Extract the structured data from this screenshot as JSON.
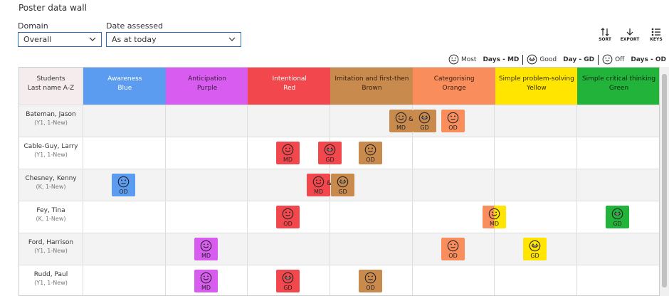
{
  "header": {
    "title": "Poster data wall"
  },
  "filters": [
    {
      "label": "Domain",
      "value": "Overall"
    },
    {
      "label": "Date assessed",
      "value": "As at today"
    }
  ],
  "toolbar": [
    "Sort",
    "Export",
    "Keys"
  ],
  "legend": [
    {
      "word": "Most",
      "text": "Days - MD"
    },
    {
      "word": "Good",
      "text": "Day - GD"
    },
    {
      "word": "Off",
      "text": "Days - OD"
    }
  ],
  "table": {
    "first_column": {
      "title": "Students",
      "subtitle": "Last name A-Z"
    },
    "columns": [
      {
        "name": "Awareness",
        "color_name": "Blue",
        "color": "#5b9cf0",
        "text": "#ffffff"
      },
      {
        "name": "Anticipation",
        "color_name": "Purple",
        "color": "#d95cf0",
        "text": "#3a1a40"
      },
      {
        "name": "Intentional",
        "color_name": "Red",
        "color": "#f2484d",
        "text": "#ffffff"
      },
      {
        "name": "Imitation and first-then",
        "color_name": "Brown",
        "color": "#c98a4e",
        "text": "#3a2410"
      },
      {
        "name": "Categorising",
        "color_name": "Orange",
        "color": "#f98d5c",
        "text": "#3a2010"
      },
      {
        "name": "Simple problem-solving",
        "color_name": "Yellow",
        "color": "#ffe500",
        "text": "#3a3300"
      },
      {
        "name": "Simple critical thinking",
        "color_name": "Green",
        "color": "#22b43a",
        "text": "#0d2a10"
      }
    ],
    "rows": [
      {
        "name": "Bateman, Jason",
        "sub": "(Y1, 1-New)",
        "items": [
          {
            "label": "MD",
            "color": "#c98a4e"
          },
          {
            "text": "&"
          },
          {
            "label": "GD",
            "color": "#c98a4e"
          },
          {
            "label": "OD",
            "color": "#f98d5c"
          }
        ]
      },
      {
        "name": "Cable-Guy, Larry",
        "sub": "(Y1, 1-New)",
        "items": [
          {
            "label": "MD",
            "color": "#f2484d"
          },
          {
            "label": "GD",
            "color": "#f2484d"
          },
          {
            "label": "OD",
            "color": "#c98a4e"
          }
        ]
      },
      {
        "name": "Chesney, Kenny",
        "sub": "(K, 1-New)",
        "items": [
          {
            "label": "OD",
            "color": "#5b9cf0"
          },
          {
            "label": "MD",
            "color": "#f2484d"
          },
          {
            "text": "&"
          },
          {
            "label": "GD",
            "color": "#c98a4e"
          }
        ]
      },
      {
        "name": "Fey, Tina",
        "sub": "(K, 1-New)",
        "items": [
          {
            "label": "OD",
            "color": "#f2484d"
          },
          {
            "label": "MD",
            "color": "#f98d5c",
            "color2": "#ffe500"
          },
          {
            "label": "GD",
            "color": "#22b43a"
          }
        ]
      },
      {
        "name": "Ford, Harrison",
        "sub": "(Y1, 1-New)",
        "items": [
          {
            "label": "MD",
            "color": "#d95cf0"
          },
          {
            "label": "OD",
            "color": "#f98d5c"
          },
          {
            "label": "GD",
            "color": "#ffe500"
          }
        ]
      },
      {
        "name": "Rudd, Paul",
        "sub": "(Y1, 1-New)",
        "items": [
          {
            "label": "MD",
            "color": "#d95cf0"
          },
          {
            "label": "GD",
            "color": "#f2484d"
          },
          {
            "label": "OD",
            "color": "#c98a4e"
          }
        ]
      }
    ]
  }
}
